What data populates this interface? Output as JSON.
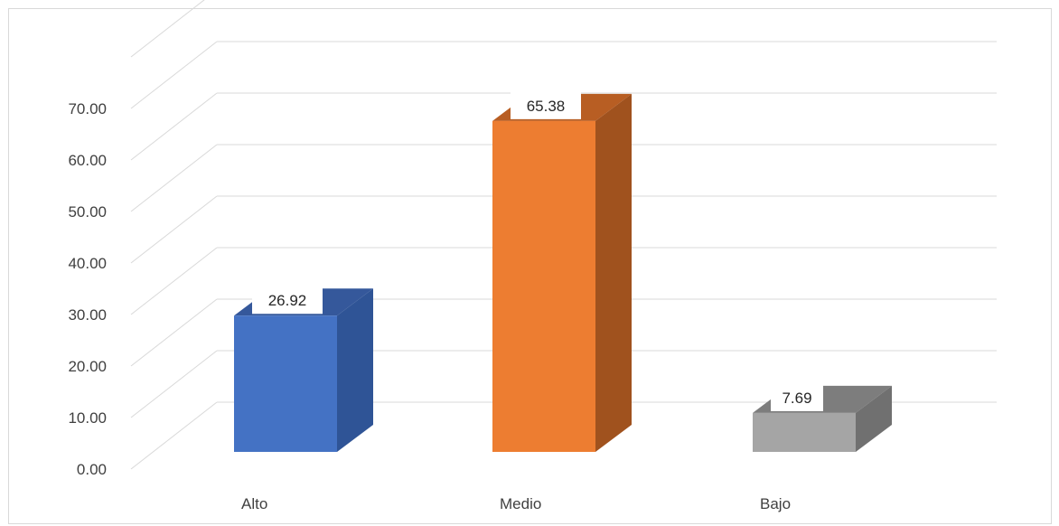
{
  "chart_data": {
    "type": "bar",
    "categories": [
      "Alto",
      "Medio",
      "Bajo"
    ],
    "values": [
      26.92,
      65.38,
      7.69
    ],
    "value_labels": [
      "26.92",
      "65.38",
      "7.69"
    ],
    "y_ticks": [
      "0.00",
      "10.00",
      "20.00",
      "30.00",
      "40.00",
      "50.00",
      "60.00",
      "70.00"
    ],
    "ylim": [
      0,
      80
    ],
    "grid": true,
    "style": "3d-column",
    "colors": [
      "#4472c4",
      "#ed7d31",
      "#a5a5a5"
    ],
    "side_colors": [
      "#2f5496",
      "#a0521e",
      "#707070"
    ],
    "top_colors": [
      "#35589b",
      "#b85e23",
      "#7d7d7d"
    ],
    "title": "",
    "xlabel": "",
    "ylabel": ""
  }
}
